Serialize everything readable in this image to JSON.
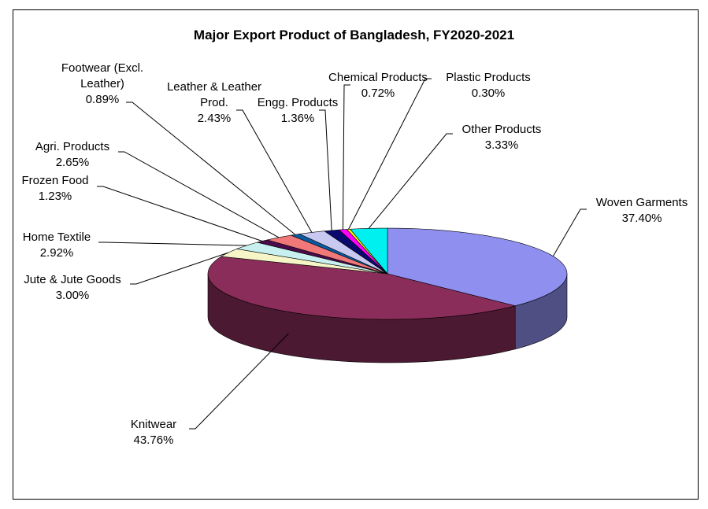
{
  "chart_data": {
    "type": "pie",
    "title": "Major Export Product of Bangladesh, FY2020-2021",
    "categories": [
      "Woven Garments",
      "Knitwear",
      "Jute & Jute Goods",
      "Home Textile",
      "Frozen Food",
      "Agri. Products",
      "Footwear (Excl. Leather)",
      "Leather & Leather Prod.",
      "Engg. Products",
      "Chemical Products",
      "Plastic Products",
      "Other Products"
    ],
    "values": [
      37.4,
      43.76,
      3.0,
      2.92,
      1.23,
      2.65,
      0.89,
      2.43,
      1.36,
      0.72,
      0.3,
      3.33
    ],
    "value_labels": [
      "37.40%",
      "43.76%",
      "3.00%",
      "2.92%",
      "1.23%",
      "2.65%",
      "0.89%",
      "2.43%",
      "1.36%",
      "0.72%",
      "0.30%",
      "3.33%"
    ],
    "colors": [
      "#8f8fef",
      "#8b2d5a",
      "#f5f5c8",
      "#c8f0f0",
      "#4b0a4b",
      "#f07878",
      "#0a5aa0",
      "#c8c8f0",
      "#0a0a6e",
      "#ff00ff",
      "#ffff00",
      "#00f0f0"
    ]
  }
}
